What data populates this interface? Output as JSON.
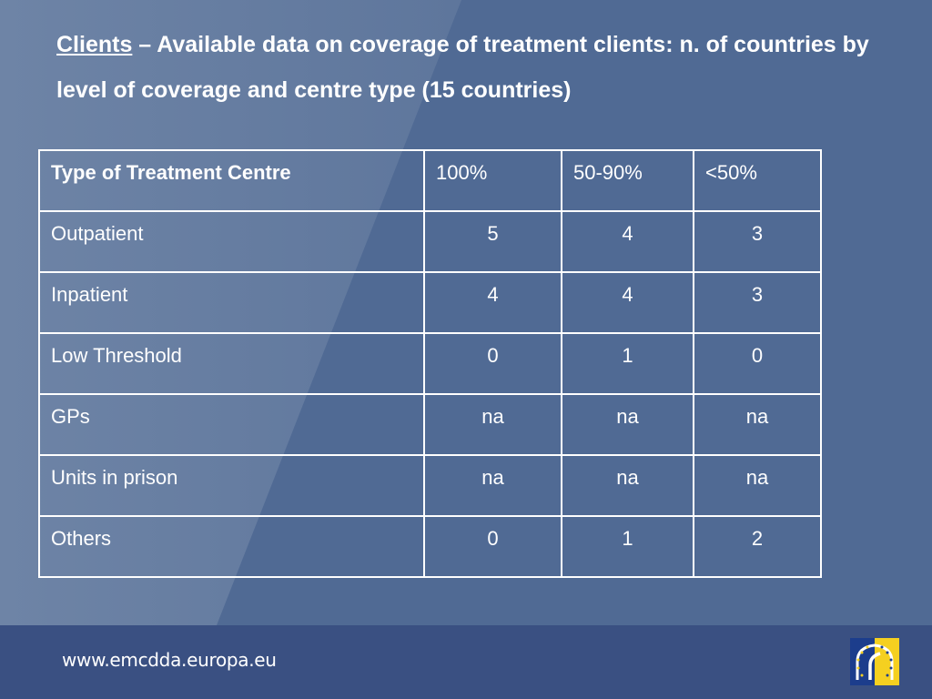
{
  "title": {
    "lead": "Clients",
    "rest": " – Available data on coverage of treatment clients: n. of countries by level of coverage and centre type (15 countries)"
  },
  "table": {
    "headers": [
      "Type of Treatment Centre",
      "100%",
      "50-90%",
      "<50%"
    ],
    "rows": [
      [
        "Outpatient",
        "5",
        "4",
        "3"
      ],
      [
        "Inpatient",
        "4",
        "4",
        "3"
      ],
      [
        "Low Threshold",
        "0",
        "1",
        "0"
      ],
      [
        "GPs",
        "na",
        "na",
        "na"
      ],
      [
        "Units in prison",
        "na",
        "na",
        "na"
      ],
      [
        "Others",
        "0",
        "1",
        "2"
      ]
    ]
  },
  "footer": {
    "url": "www.emcdda.europa.eu"
  },
  "colors": {
    "background": "#506a94",
    "footer": "#3a5082",
    "logo_blue": "#1c3d8c",
    "logo_yellow": "#f5d020"
  },
  "icons": {
    "logo": "emcdda-logo-icon"
  }
}
